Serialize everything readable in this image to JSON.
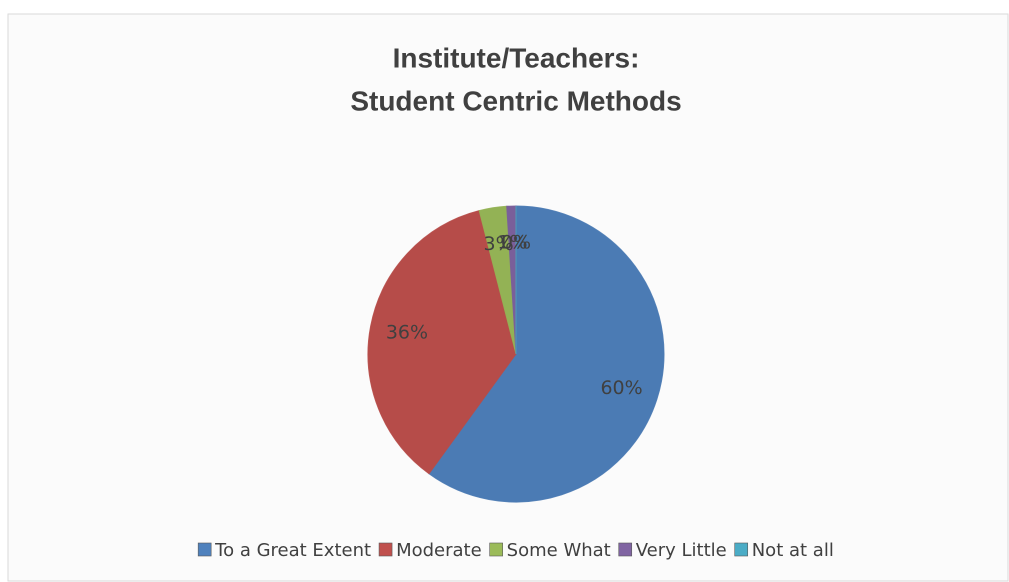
{
  "chart_data": {
    "type": "pie",
    "title": [
      "Institute/Teachers:",
      "Student Centric Methods"
    ],
    "categories": [
      "To a Great Extent",
      "Moderate",
      "Some What",
      "Very Little",
      "Not at all"
    ],
    "values": [
      60,
      36,
      3,
      1,
      0
    ],
    "value_labels": [
      "60%",
      "36%",
      "3%",
      "1%",
      "0%"
    ],
    "colors": [
      "#4f81bd",
      "#c0504d",
      "#9bbb59",
      "#8064a2",
      "#4bacc6"
    ],
    "legend": "bottom"
  }
}
